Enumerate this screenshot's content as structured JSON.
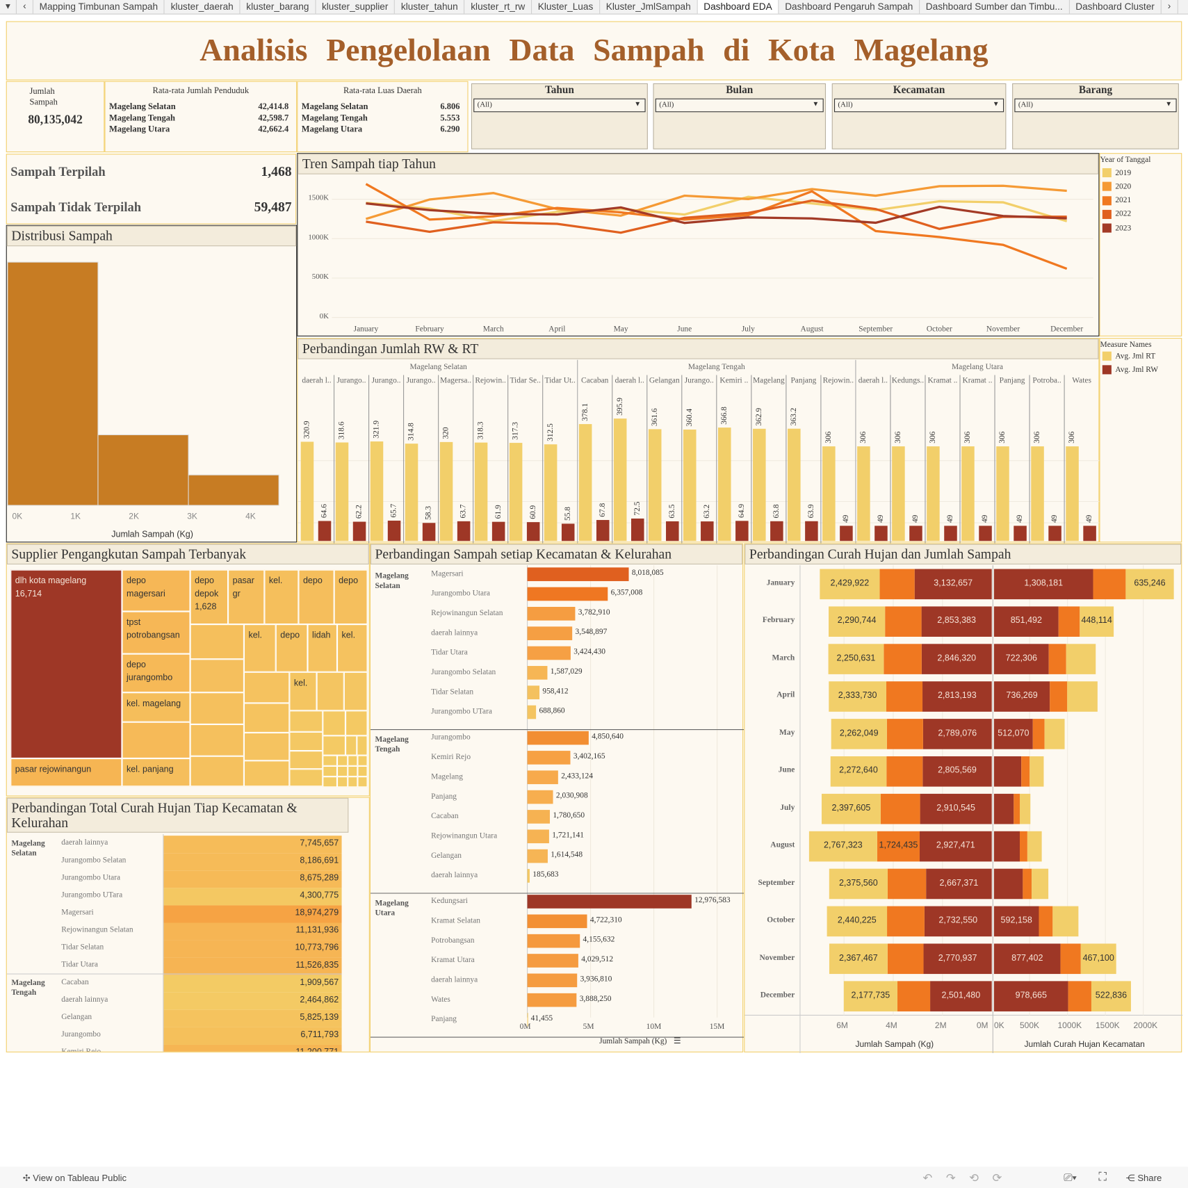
{
  "tabs": [
    "Mapping Timbunan Sampah",
    "kluster_daerah",
    "kluster_barang",
    "kluster_supplier",
    "kluster_tahun",
    "kluster_rt_rw",
    "Kluster_Luas",
    "Kluster_JmlSampah",
    "Dashboard EDA",
    "Dashboard Pengaruh Sampah",
    "Dashboard Sumber dan Timbu...",
    "Dashboard Cluster"
  ],
  "active_tab": "Dashboard EDA",
  "title": "Analisis Pengelolaan Data Sampah di Kota Magelang",
  "kpi": {
    "jumlah_label": "Jumlah Sampah",
    "jumlah_value": "80,135,042",
    "penduduk": {
      "title": "Rata-rata Jumlah Penduduk",
      "rows": [
        {
          "name": "Magelang Selatan",
          "value": "42,414.8"
        },
        {
          "name": "Magelang Tengah",
          "value": "42,598.7"
        },
        {
          "name": "Magelang Utara",
          "value": "42,662.4"
        }
      ]
    },
    "luas": {
      "title": "Rata-rata Luas Daerah",
      "rows": [
        {
          "name": "Magelang Selatan",
          "value": "6.806"
        },
        {
          "name": "Magelang Tengah",
          "value": "5.553"
        },
        {
          "name": "Magelang Utara",
          "value": "6.290"
        }
      ]
    }
  },
  "filters": [
    {
      "label": "Tahun",
      "value": "(All)"
    },
    {
      "label": "Bulan",
      "value": "(All)"
    },
    {
      "label": "Kecamatan",
      "value": "(All)"
    },
    {
      "label": "Barang",
      "value": "(All)"
    }
  ],
  "pilah": {
    "terpilah_label": "Sampah Terpilah",
    "terpilah_value": "1,468",
    "tidak_label": "Sampah Tidak Terpilah",
    "tidak_value": "59,487"
  },
  "colors": {
    "title": "#a45f2a",
    "panel_bg": "#fdf9f1",
    "header_bg": "#f3ecdc",
    "border": "#f2cf6a",
    "histogram": "#c77c23",
    "dark_red": "#9e3726"
  },
  "chart_data": [
    {
      "id": "histogram",
      "type": "bar",
      "title": "Distribusi Sampah",
      "xlabel": "Jumlah Sampah (Kg)",
      "xticks": [
        "0K",
        "1K",
        "2K",
        "3K",
        "4K"
      ],
      "bins": [
        [
          0,
          1550
        ],
        [
          1550,
          3100
        ],
        [
          3100,
          4650
        ]
      ],
      "relative_counts": [
        100,
        29,
        12.5
      ]
    },
    {
      "id": "trend",
      "type": "line",
      "title": "Tren Sampah tiap Tahun",
      "legend_title": "Year of Tanggal",
      "legend_position": "right",
      "x": [
        "January",
        "February",
        "March",
        "April",
        "May",
        "June",
        "July",
        "August",
        "September",
        "October",
        "November",
        "December"
      ],
      "yticks": [
        "0K",
        "500K",
        "1000K",
        "1500K"
      ],
      "ylim": [
        0,
        1800000
      ],
      "grid": true,
      "series": [
        {
          "name": "2019",
          "color": "#f2cf6a",
          "values": [
            1455000,
            1382000,
            1222000,
            1340000,
            1376000,
            1306000,
            1531000,
            1447000,
            1362000,
            1475000,
            1461000,
            1222000
          ]
        },
        {
          "name": "2020",
          "color": "#f59a35",
          "values": [
            1250000,
            1497000,
            1579000,
            1376000,
            1292000,
            1545000,
            1503000,
            1629000,
            1545000,
            1666000,
            1671000,
            1607000
          ]
        },
        {
          "name": "2021",
          "color": "#f07820",
          "values": [
            1694000,
            1242000,
            1284000,
            1390000,
            1334000,
            1242000,
            1298000,
            1601000,
            1096000,
            1020000,
            921000,
            618000
          ]
        },
        {
          "name": "2022",
          "color": "#e0601f",
          "values": [
            1216000,
            1087000,
            1208000,
            1188000,
            1076000,
            1264000,
            1326000,
            1483000,
            1376000,
            1124000,
            1278000,
            1278000
          ]
        },
        {
          "name": "2023",
          "color": "#a33a26",
          "values": [
            1447000,
            1362000,
            1315000,
            1306000,
            1396000,
            1199000,
            1270000,
            1256000,
            1202000,
            1404000,
            1287000,
            1258000
          ]
        }
      ]
    },
    {
      "id": "rwrt",
      "type": "bar",
      "title": "Perbandingan Jumlah RW & RT",
      "legend_title": "Measure Names",
      "legend_position": "right",
      "series": [
        {
          "name": "Avg. Jml RT",
          "color": "#f2cf6a"
        },
        {
          "name": "Avg. Jml RW",
          "color": "#9e3726"
        }
      ],
      "groups": [
        {
          "name": "Magelang Selatan",
          "items": [
            {
              "label": "daerah l..",
              "rt": 320.9,
              "rw": 64.6
            },
            {
              "label": "Jurango..",
              "rt": 318.6,
              "rw": 62.2
            },
            {
              "label": "Jurango..",
              "rt": 321.9,
              "rw": 65.7
            },
            {
              "label": "Jurango..",
              "rt": 314.8,
              "rw": 58.3
            },
            {
              "label": "Magersa..",
              "rt": 320.0,
              "rw": 63.7
            },
            {
              "label": "Rejowin..",
              "rt": 318.3,
              "rw": 61.9
            },
            {
              "label": "Tidar Se..",
              "rt": 317.3,
              "rw": 60.9
            },
            {
              "label": "Tidar Ut..",
              "rt": 312.5,
              "rw": 55.8
            }
          ]
        },
        {
          "name": "Magelang Tengah",
          "items": [
            {
              "label": "Cacaban",
              "rt": 378.1,
              "rw": 67.8
            },
            {
              "label": "daerah l..",
              "rt": 395.9,
              "rw": 72.5
            },
            {
              "label": "Gelangan",
              "rt": 361.6,
              "rw": 63.5
            },
            {
              "label": "Jurango..",
              "rt": 360.4,
              "rw": 63.2
            },
            {
              "label": "Kemiri ..",
              "rt": 366.8,
              "rw": 64.9
            },
            {
              "label": "Magelang",
              "rt": 362.9,
              "rw": 63.8
            },
            {
              "label": "Panjang",
              "rt": 363.2,
              "rw": 63.9
            },
            {
              "label": "Rejowin..",
              "rt": 306.0,
              "rw": 49.0
            }
          ]
        },
        {
          "name": "Magelang Utara",
          "items": [
            {
              "label": "daerah l..",
              "rt": 306.0,
              "rw": 49.0
            },
            {
              "label": "Kedungs..",
              "rt": 306.0,
              "rw": 49.0
            },
            {
              "label": "Kramat ..",
              "rt": 306.0,
              "rw": 49.0
            },
            {
              "label": "Kramat ..",
              "rt": 306.0,
              "rw": 49.0
            },
            {
              "label": "Panjang",
              "rt": 306.0,
              "rw": 49.0
            },
            {
              "label": "Potroba..",
              "rt": 306.0,
              "rw": 49.0
            },
            {
              "label": "Wates",
              "rt": 306.0,
              "rw": 49.0
            }
          ]
        }
      ]
    },
    {
      "id": "supplier",
      "type": "treemap",
      "title": "Supplier Pengangkutan Sampah Terbanyak",
      "labels": [
        "dlh kota magelang",
        "16,714",
        "pasar rejowinangun",
        "depo magersari",
        "tpst potrobangsan",
        "depo jurangombo",
        "kel. magelang",
        "kel. panjang",
        "depo depok",
        "1,628",
        "pasar gr",
        "kel.",
        "depo",
        "depo",
        "kel.",
        "depo",
        "lidah",
        "kel.",
        "kel."
      ]
    },
    {
      "id": "kecamatan",
      "type": "bar",
      "title": "Perbandingan Sampah setiap Kecamatan & Kelurahan",
      "xlabel": "Jumlah Sampah (Kg)",
      "xticks": [
        "0M",
        "5M",
        "10M",
        "15M"
      ],
      "xlim": [
        0,
        16000000
      ],
      "groups": [
        {
          "name": "Magelang Selatan",
          "rows": [
            [
              "Magersari",
              8018085
            ],
            [
              "Jurangombo Utara",
              6357008
            ],
            [
              "Rejowinangun Selatan",
              3782910
            ],
            [
              "daerah lainnya",
              3548897
            ],
            [
              "Tidar Utara",
              3424430
            ],
            [
              "Jurangombo Selatan",
              1587029
            ],
            [
              "Tidar Selatan",
              958412
            ],
            [
              "Jurangombo UTara",
              688860
            ]
          ]
        },
        {
          "name": "Magelang Tengah",
          "rows": [
            [
              "Jurangombo",
              4850640
            ],
            [
              "Kemiri Rejo",
              3402165
            ],
            [
              "Magelang",
              2433124
            ],
            [
              "Panjang",
              2030908
            ],
            [
              "Cacaban",
              1780650
            ],
            [
              "Rejowinangun Utara",
              1721141
            ],
            [
              "Gelangan",
              1614548
            ],
            [
              "daerah lainnya",
              185683
            ]
          ]
        },
        {
          "name": "Magelang Utara",
          "rows": [
            [
              "Kedungsari",
              12976583
            ],
            [
              "Kramat Selatan",
              4722310
            ],
            [
              "Potrobangsan",
              4155632
            ],
            [
              "Kramat Utara",
              4029512
            ],
            [
              "daerah lainnya",
              3936810
            ],
            [
              "Wates",
              3888250
            ],
            [
              "Panjang",
              41455
            ]
          ]
        }
      ]
    },
    {
      "id": "curah_table",
      "type": "table",
      "title": "Perbandingan Total Curah Hujan Tiap Kecamatan & Kelurahan",
      "groups": [
        {
          "name": "Magelang Selatan",
          "rows": [
            [
              "daerah lainnya",
              7745657
            ],
            [
              "Jurangombo Selatan",
              8186691
            ],
            [
              "Jurangombo Utara",
              8675289
            ],
            [
              "Jurangombo UTara",
              4300775
            ],
            [
              "Magersari",
              18974279
            ],
            [
              "Rejowinangun Selatan",
              11131936
            ],
            [
              "Tidar Selatan",
              10773796
            ],
            [
              "Tidar Utara",
              11526835
            ]
          ]
        },
        {
          "name": "Magelang Tengah",
          "rows": [
            [
              "Cacaban",
              1909567
            ],
            [
              "daerah lainnya",
              2464862
            ],
            [
              "Gelangan",
              5825139
            ],
            [
              "Jurangombo",
              6711793
            ],
            [
              "Kemiri Rejo",
              11200771
            ]
          ]
        }
      ]
    },
    {
      "id": "butterfly",
      "type": "bar",
      "title": "Perbandingan Curah Hujan dan Jumlah Sampah",
      "left_xlabel": "Jumlah Sampah (Kg)",
      "right_xlabel": "Jumlah Curah Hujan Kecamatan",
      "left_ticks": [
        "6M",
        "4M",
        "2M",
        "0M"
      ],
      "right_ticks": [
        "0K",
        "500K",
        "1000K",
        "1500K",
        "2000K"
      ],
      "segment_colors": [
        "#9e3726",
        "#f07820",
        "#f2cf6a"
      ],
      "months": [
        "January",
        "February",
        "March",
        "April",
        "May",
        "June",
        "July",
        "August",
        "September",
        "October",
        "November",
        "December"
      ],
      "left": [
        [
          3132657,
          1420000,
          2429922
        ],
        [
          2853383,
          1480000,
          2290744
        ],
        [
          2846320,
          1540000,
          2250631
        ],
        [
          2813193,
          1470000,
          2333730
        ],
        [
          2789076,
          1470000,
          2262049
        ],
        [
          2805569,
          1470000,
          2272640
        ],
        [
          2910545,
          1600000,
          2397605
        ],
        [
          2927471,
          1724435,
          2767323
        ],
        [
          2667371,
          1560000,
          2375560
        ],
        [
          2732550,
          1520000,
          2440225
        ],
        [
          2770937,
          1460000,
          2367467
        ],
        [
          2501480,
          1330000,
          2177735
        ]
      ],
      "right": [
        [
          1308181,
          430000,
          635246
        ],
        [
          851492,
          280000,
          448114
        ],
        [
          722306,
          230000,
          390000
        ],
        [
          736269,
          230000,
          400000
        ],
        [
          512070,
          155000,
          265000
        ],
        [
          360000,
          110000,
          186000
        ],
        [
          260000,
          80000,
          140000
        ],
        [
          340000,
          100000,
          190000
        ],
        [
          380000,
          117000,
          220000
        ],
        [
          592158,
          182000,
          340000
        ],
        [
          877402,
          268000,
          467100
        ],
        [
          978665,
          306000,
          522836
        ]
      ],
      "labeled": {
        "left": [
          [
            1,
            0,
            1
          ],
          [
            1,
            0,
            1
          ],
          [
            1,
            0,
            1
          ],
          [
            1,
            0,
            1
          ],
          [
            1,
            0,
            1
          ],
          [
            1,
            0,
            1
          ],
          [
            1,
            0,
            1
          ],
          [
            1,
            1,
            1
          ],
          [
            1,
            0,
            1
          ],
          [
            1,
            0,
            1
          ],
          [
            1,
            0,
            1
          ],
          [
            1,
            0,
            1
          ]
        ],
        "right": [
          [
            1,
            0,
            1
          ],
          [
            1,
            0,
            1
          ],
          [
            1,
            0,
            0
          ],
          [
            1,
            0,
            0
          ],
          [
            1,
            0,
            0
          ],
          [
            0,
            0,
            0
          ],
          [
            0,
            0,
            0
          ],
          [
            0,
            0,
            0
          ],
          [
            0,
            0,
            0
          ],
          [
            1,
            0,
            0
          ],
          [
            1,
            0,
            1
          ],
          [
            1,
            0,
            1
          ]
        ]
      }
    }
  ],
  "footer": {
    "view_label": "View on Tableau Public",
    "share_label": "Share"
  }
}
